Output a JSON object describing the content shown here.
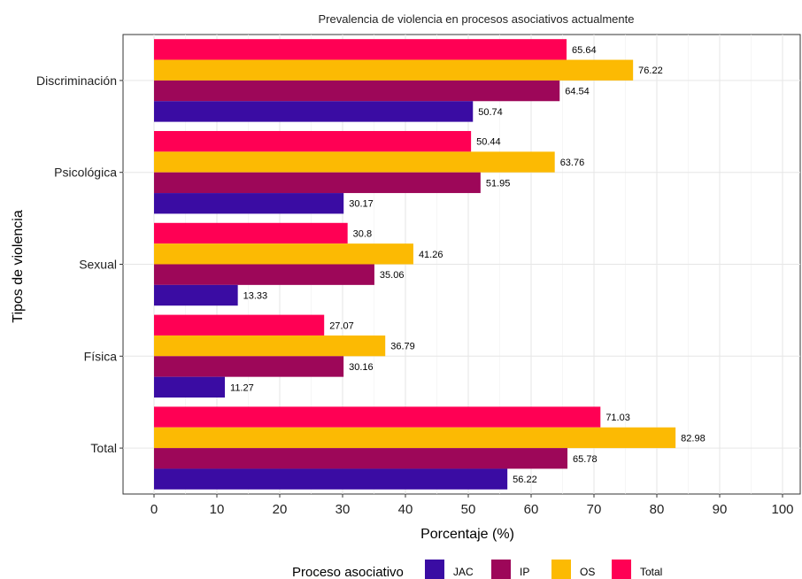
{
  "chart_data": {
    "type": "bar",
    "orientation": "horizontal",
    "title": "Prevalencia de violencia en procesos asociativos actualmente",
    "xlabel": "Porcentaje (%)",
    "ylabel": "Tipos de violencia",
    "xlim": [
      0,
      100
    ],
    "xticks": [
      "0",
      "10",
      "20",
      "30",
      "40",
      "50",
      "60",
      "70",
      "80",
      "90",
      "100"
    ],
    "categories": [
      "Discriminación",
      "Psicológica",
      "Sexual",
      "Física",
      "Total"
    ],
    "series": [
      {
        "name": "JAC",
        "color": "#3a0ca3",
        "values": [
          50.74,
          30.17,
          13.33,
          11.27,
          56.22
        ],
        "labels": [
          "50.74",
          "30.17",
          "13.33",
          "11.27",
          "56.22"
        ]
      },
      {
        "name": "IP",
        "color": "#9d0759",
        "values": [
          64.54,
          51.95,
          35.06,
          30.16,
          65.78
        ],
        "labels": [
          "64.54",
          "51.95",
          "35.06",
          "30.16",
          "65.78"
        ]
      },
      {
        "name": "OS",
        "color": "#fcba03",
        "values": [
          76.22,
          63.76,
          41.26,
          36.79,
          82.98
        ],
        "labels": [
          "76.22",
          "63.76",
          "41.26",
          "36.79",
          "82.98"
        ]
      },
      {
        "name": "Total",
        "color": "#ff0054",
        "values": [
          65.64,
          50.44,
          30.8,
          27.07,
          71.03
        ],
        "labels": [
          "65.64",
          "50.44",
          "30.8",
          "27.07",
          "71.03"
        ]
      }
    ],
    "grid": true,
    "legend": {
      "title": "Proceso asociativo",
      "position": "bottom"
    }
  }
}
